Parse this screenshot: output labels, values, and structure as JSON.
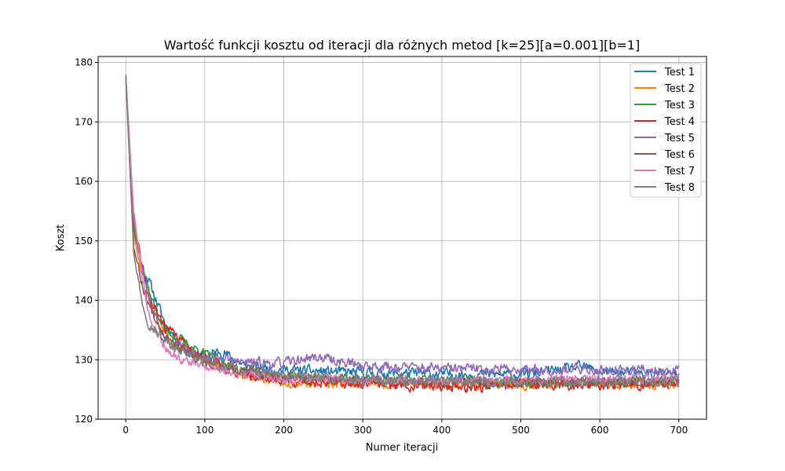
{
  "chart_data": {
    "type": "line",
    "title": "Wartość funkcji kosztu od iteracji dla różnych metod [k=25][a=0.001][b=1]",
    "xlabel": "Numer iteracji",
    "ylabel": "Koszt",
    "xlim": [
      -35,
      735
    ],
    "ylim": [
      120,
      181
    ],
    "xticks": [
      0,
      100,
      200,
      300,
      400,
      500,
      600,
      700
    ],
    "yticks": [
      120,
      130,
      140,
      150,
      160,
      170,
      180
    ],
    "grid": true,
    "legend_position": "top-right",
    "x_range": [
      0,
      700
    ],
    "series": [
      {
        "name": "Test 1",
        "color": "#1f77b4",
        "start": 178.0,
        "plateau": 127.6,
        "tau": 22,
        "noise": 0.85,
        "seed": 11,
        "anchors": [
          [
            0,
            178
          ],
          [
            10,
            152
          ],
          [
            20,
            146
          ],
          [
            30,
            143
          ],
          [
            50,
            136
          ],
          [
            80,
            131
          ],
          [
            100,
            130.5
          ],
          [
            120,
            131.5
          ],
          [
            150,
            129
          ],
          [
            200,
            128.3
          ],
          [
            300,
            127.8
          ],
          [
            400,
            127.6
          ],
          [
            500,
            127.5
          ],
          [
            580,
            128.8
          ],
          [
            600,
            128
          ],
          [
            700,
            127.4
          ]
        ]
      },
      {
        "name": "Test 2",
        "color": "#ff7f0e",
        "start": 177.5,
        "plateau": 126.0,
        "tau": 22,
        "noise": 0.8,
        "seed": 23,
        "anchors": [
          [
            0,
            177.5
          ],
          [
            10,
            151
          ],
          [
            20,
            145
          ],
          [
            40,
            137
          ],
          [
            60,
            133
          ],
          [
            100,
            130
          ],
          [
            150,
            127.5
          ],
          [
            200,
            126.3
          ],
          [
            300,
            126
          ],
          [
            400,
            125.9
          ],
          [
            500,
            125.8
          ],
          [
            600,
            125.8
          ],
          [
            700,
            125.8
          ]
        ]
      },
      {
        "name": "Test 3",
        "color": "#2ca02c",
        "start": 177.8,
        "plateau": 126.4,
        "tau": 22,
        "noise": 0.8,
        "seed": 37,
        "anchors": [
          [
            0,
            177.8
          ],
          [
            10,
            152
          ],
          [
            20,
            146
          ],
          [
            30,
            141
          ],
          [
            50,
            135
          ],
          [
            80,
            132.5
          ],
          [
            100,
            131
          ],
          [
            150,
            128
          ],
          [
            200,
            127
          ],
          [
            300,
            126.6
          ],
          [
            400,
            126.4
          ],
          [
            500,
            126.3
          ],
          [
            600,
            126.3
          ],
          [
            700,
            126.4
          ]
        ]
      },
      {
        "name": "Test 4",
        "color": "#d62728",
        "start": 177.6,
        "plateau": 125.9,
        "tau": 22,
        "noise": 0.9,
        "seed": 41,
        "anchors": [
          [
            0,
            177.6
          ],
          [
            10,
            153
          ],
          [
            20,
            146
          ],
          [
            30,
            140
          ],
          [
            50,
            135.5
          ],
          [
            80,
            132
          ],
          [
            100,
            130
          ],
          [
            150,
            127.5
          ],
          [
            200,
            126.5
          ],
          [
            300,
            126
          ],
          [
            400,
            125.6
          ],
          [
            450,
            125.4
          ],
          [
            500,
            125.9
          ],
          [
            600,
            125.8
          ],
          [
            700,
            125.9
          ]
        ]
      },
      {
        "name": "Test 5",
        "color": "#9467bd",
        "start": 177.9,
        "plateau": 128.4,
        "tau": 22,
        "noise": 0.85,
        "seed": 53,
        "anchors": [
          [
            0,
            177.9
          ],
          [
            10,
            154
          ],
          [
            20,
            146
          ],
          [
            30,
            140
          ],
          [
            50,
            134
          ],
          [
            80,
            131.5
          ],
          [
            100,
            130.5
          ],
          [
            150,
            129.5
          ],
          [
            200,
            129.4
          ],
          [
            240,
            130.5
          ],
          [
            300,
            129
          ],
          [
            400,
            128.5
          ],
          [
            500,
            128.4
          ],
          [
            600,
            128.3
          ],
          [
            700,
            128.2
          ]
        ]
      },
      {
        "name": "Test 6",
        "color": "#8c564b",
        "start": 177.7,
        "plateau": 126.3,
        "tau": 22,
        "noise": 0.8,
        "seed": 67,
        "anchors": [
          [
            0,
            177.7
          ],
          [
            10,
            149
          ],
          [
            20,
            143
          ],
          [
            30,
            139
          ],
          [
            50,
            134
          ],
          [
            80,
            131
          ],
          [
            100,
            129.5
          ],
          [
            150,
            128
          ],
          [
            200,
            127
          ],
          [
            300,
            126.5
          ],
          [
            400,
            126.3
          ],
          [
            500,
            126.3
          ],
          [
            600,
            126.3
          ],
          [
            700,
            126.3
          ]
        ]
      },
      {
        "name": "Test 7",
        "color": "#e377c2",
        "start": 177.5,
        "plateau": 126.7,
        "tau": 22,
        "noise": 0.75,
        "seed": 79,
        "anchors": [
          [
            0,
            177.5
          ],
          [
            10,
            155
          ],
          [
            20,
            145
          ],
          [
            30,
            137
          ],
          [
            50,
            132
          ],
          [
            70,
            130
          ],
          [
            100,
            129
          ],
          [
            150,
            127.5
          ],
          [
            200,
            126.8
          ],
          [
            300,
            126.6
          ],
          [
            400,
            126.5
          ],
          [
            500,
            126.6
          ],
          [
            600,
            126.8
          ],
          [
            700,
            127
          ]
        ]
      },
      {
        "name": "Test 8",
        "color": "#7f7f7f",
        "start": 178.0,
        "plateau": 126.3,
        "tau": 22,
        "noise": 0.85,
        "seed": 97,
        "anchors": [
          [
            0,
            178
          ],
          [
            10,
            148
          ],
          [
            20,
            140
          ],
          [
            30,
            136
          ],
          [
            50,
            133
          ],
          [
            80,
            131
          ],
          [
            100,
            129.5
          ],
          [
            150,
            128.2
          ],
          [
            200,
            127.3
          ],
          [
            300,
            126.5
          ],
          [
            400,
            126.3
          ],
          [
            500,
            126.2
          ],
          [
            600,
            126.3
          ],
          [
            700,
            126.4
          ]
        ]
      }
    ]
  }
}
